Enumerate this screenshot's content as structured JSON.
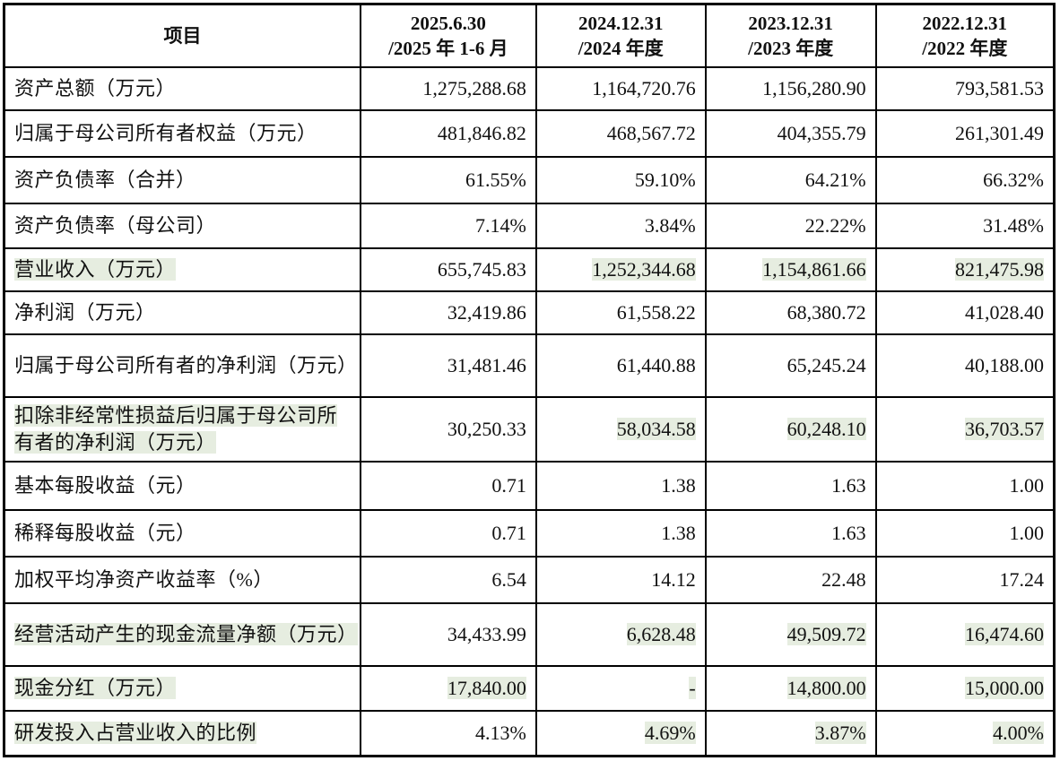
{
  "colors": {
    "highlight": "#e6ede0",
    "border": "#000000"
  },
  "headers": [
    {
      "line1": "项目",
      "line2": ""
    },
    {
      "line1": "2025.6.30",
      "line2": "/2025 年 1-6 月"
    },
    {
      "line1": "2024.12.31",
      "line2": "/2024 年度"
    },
    {
      "line1": "2023.12.31",
      "line2": "/2023 年度"
    },
    {
      "line1": "2022.12.31",
      "line2": "/2022 年度"
    }
  ],
  "rows": [
    {
      "label": "资产总额（万元）",
      "values": [
        "1,275,288.68",
        "1,164,720.76",
        "1,156,280.90",
        "793,581.53"
      ],
      "hl_label": false,
      "hl": [
        false,
        false,
        false,
        false
      ],
      "h": 48
    },
    {
      "label": "归属于母公司所有者权益（万元）",
      "values": [
        "481,846.82",
        "468,567.72",
        "404,355.79",
        "261,301.49"
      ],
      "hl_label": false,
      "hl": [
        false,
        false,
        false,
        false
      ],
      "h": 52
    },
    {
      "label": "资产负债率（合并）",
      "values": [
        "61.55%",
        "59.10%",
        "64.21%",
        "66.32%"
      ],
      "hl_label": false,
      "hl": [
        false,
        false,
        false,
        false
      ],
      "h": 52
    },
    {
      "label": "资产负债率（母公司）",
      "values": [
        "7.14%",
        "3.84%",
        "22.22%",
        "31.48%"
      ],
      "hl_label": false,
      "hl": [
        false,
        false,
        false,
        false
      ],
      "h": 50
    },
    {
      "label": "营业收入（万元）",
      "values": [
        "655,745.83",
        "1,252,344.68",
        "1,154,861.66",
        "821,475.98"
      ],
      "hl_label": true,
      "hl": [
        false,
        true,
        true,
        true
      ],
      "h": 48
    },
    {
      "label": "净利润（万元）",
      "values": [
        "32,419.86",
        "61,558.22",
        "68,380.72",
        "41,028.40"
      ],
      "hl_label": false,
      "hl": [
        false,
        false,
        false,
        false
      ],
      "h": 48
    },
    {
      "label": "归属于母公司所有者的净利润（万元）",
      "values": [
        "31,481.46",
        "61,440.88",
        "65,245.24",
        "40,188.00"
      ],
      "hl_label": false,
      "hl": [
        false,
        false,
        false,
        false
      ],
      "h": 70
    },
    {
      "label": "扣除非经常性损益后归属于母公司所有者的净利润（万元）",
      "values": [
        "30,250.33",
        "58,034.58",
        "60,248.10",
        "36,703.57"
      ],
      "hl_label": true,
      "hl": [
        false,
        true,
        true,
        true
      ],
      "h": 72
    },
    {
      "label": "基本每股收益（元）",
      "values": [
        "0.71",
        "1.38",
        "1.63",
        "1.00"
      ],
      "hl_label": false,
      "hl": [
        false,
        false,
        false,
        false
      ],
      "h": 54
    },
    {
      "label": "稀释每股收益（元）",
      "values": [
        "0.71",
        "1.38",
        "1.63",
        "1.00"
      ],
      "hl_label": false,
      "hl": [
        false,
        false,
        false,
        false
      ],
      "h": 52
    },
    {
      "label": "加权平均净资产收益率（%）",
      "values": [
        "6.54",
        "14.12",
        "22.48",
        "17.24"
      ],
      "hl_label": false,
      "hl": [
        false,
        false,
        false,
        false
      ],
      "h": 52
    },
    {
      "label": "经营活动产生的现金流量净额（万元）",
      "values": [
        "34,433.99",
        "6,628.48",
        "49,509.72",
        "16,474.60"
      ],
      "hl_label": true,
      "hl": [
        false,
        true,
        true,
        true
      ],
      "h": 70
    },
    {
      "label": "现金分红（万元）",
      "values": [
        "17,840.00",
        "-",
        "14,800.00",
        "15,000.00"
      ],
      "hl_label": true,
      "hl": [
        true,
        true,
        true,
        true
      ],
      "h": 50
    },
    {
      "label": "研发投入占营业收入的比例",
      "values": [
        "4.13%",
        "4.69%",
        "3.87%",
        "4.00%"
      ],
      "hl_label": true,
      "hl": [
        false,
        true,
        true,
        true
      ],
      "h": 50
    }
  ]
}
